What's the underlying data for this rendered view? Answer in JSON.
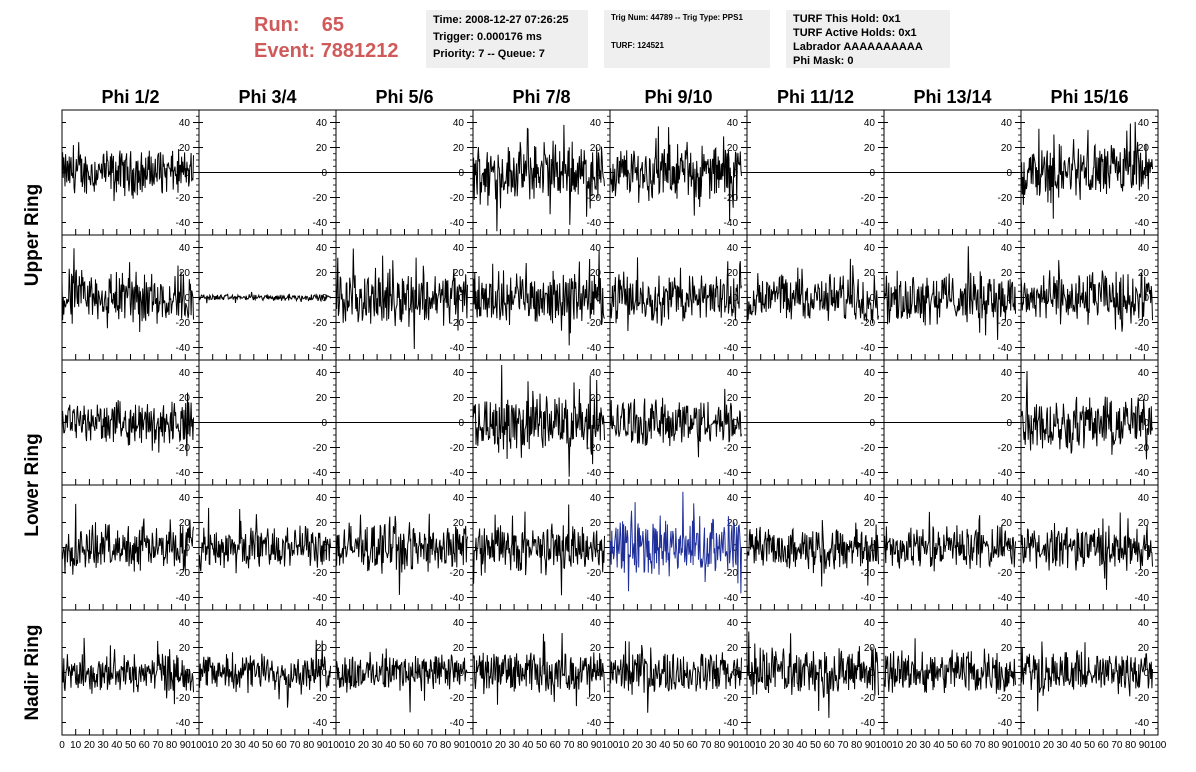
{
  "header": {
    "run_label": "Run:",
    "run_value": "65",
    "event_label": "Event:",
    "event_value": "7881212",
    "time_box": [
      "Time: 2008-12-27 07:26:25",
      "Trigger: 0.000176 ms",
      "Priority: 7 -- Queue: 7"
    ],
    "trig_box": [
      "Trig Num: 44789 -- Trig Type: PPS1",
      "",
      "TURF: 124521"
    ],
    "turf_box": [
      "TURF This Hold: 0x1",
      "TURF Active Holds: 0x1",
      "Labrador AAAAAAAAAA",
      "Phi Mask: 0"
    ]
  },
  "colors": {
    "trace": "#000000",
    "highlight_trace": "#1f2f9a",
    "header_red": "#d05a5a",
    "box_bg": "#efefef"
  },
  "chart_data": {
    "type": "line",
    "columns": [
      "Phi 1/2",
      "Phi 3/4",
      "Phi 5/6",
      "Phi 7/8",
      "Phi 9/10",
      "Phi 11/12",
      "Phi 13/14",
      "Phi 15/16"
    ],
    "row_labels": [
      {
        "label": "Upper Ring",
        "rows": [
          0,
          1
        ]
      },
      {
        "label": "Lower Ring",
        "rows": [
          2,
          3
        ]
      },
      {
        "label": "Nadir Ring",
        "rows": [
          4
        ]
      }
    ],
    "xlim": [
      0,
      100
    ],
    "ylim": [
      -50,
      50
    ],
    "x_ticks": [
      0,
      10,
      20,
      30,
      40,
      50,
      60,
      70,
      80,
      90,
      100
    ],
    "y_ticks": [
      -40,
      -20,
      0,
      20,
      40
    ],
    "trace_x_max": 96,
    "panels": [
      [
        {
          "amp": 14
        },
        {
          "amp": 0
        },
        {
          "amp": 0
        },
        {
          "amp": 18
        },
        {
          "amp": 17
        },
        {
          "amp": 0
        },
        {
          "amp": 0
        },
        {
          "amp": 18
        }
      ],
      [
        {
          "amp": 17
        },
        {
          "amp": 2
        },
        {
          "amp": 17
        },
        {
          "amp": 16
        },
        {
          "amp": 15
        },
        {
          "amp": 15
        },
        {
          "amp": 16
        },
        {
          "amp": 16
        }
      ],
      [
        {
          "amp": 13
        },
        {
          "amp": 0
        },
        {
          "amp": 0
        },
        {
          "amp": 18
        },
        {
          "amp": 15
        },
        {
          "amp": 0
        },
        {
          "amp": 0
        },
        {
          "amp": 17
        }
      ],
      [
        {
          "amp": 14
        },
        {
          "amp": 13
        },
        {
          "amp": 15
        },
        {
          "amp": 15
        },
        {
          "amp": 18,
          "highlight": true
        },
        {
          "amp": 13
        },
        {
          "amp": 13
        },
        {
          "amp": 14
        }
      ],
      [
        {
          "amp": 12
        },
        {
          "amp": 11
        },
        {
          "amp": 12
        },
        {
          "amp": 13
        },
        {
          "amp": 13
        },
        {
          "amp": 15
        },
        {
          "amp": 14
        },
        {
          "amp": 13
        }
      ]
    ]
  }
}
